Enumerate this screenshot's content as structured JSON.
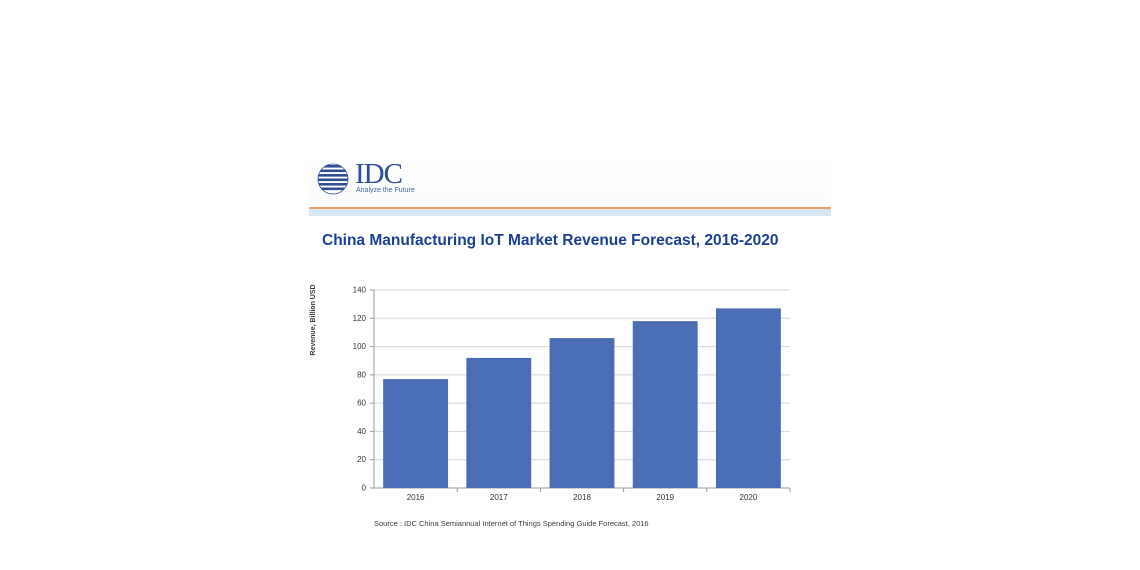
{
  "brand": {
    "name": "IDC",
    "tagline": "Analyze the Future",
    "logo_icon": "globe-stripes-icon"
  },
  "colors": {
    "bar": "#4a6db5",
    "title": "#1a3f95",
    "grid": "#d5d5d5",
    "header_rule": "#e9a062",
    "header_band": "#d7e8f5"
  },
  "chart_data": {
    "type": "bar",
    "title": "China Manufacturing IoT Market Revenue Forecast, 2016-2020",
    "xlabel": "",
    "ylabel": "Revenue, Billion USD",
    "categories": [
      "2016",
      "2017",
      "2018",
      "2019",
      "2020"
    ],
    "values": [
      77,
      92,
      106,
      118,
      127
    ],
    "ylim": [
      0,
      140
    ],
    "yticks": [
      0,
      20,
      40,
      60,
      80,
      100,
      120,
      140
    ],
    "grid": true,
    "legend": "none",
    "source": "Source : IDC China Semiannual Internet of Things Spending Guide Forecast, 2016"
  }
}
